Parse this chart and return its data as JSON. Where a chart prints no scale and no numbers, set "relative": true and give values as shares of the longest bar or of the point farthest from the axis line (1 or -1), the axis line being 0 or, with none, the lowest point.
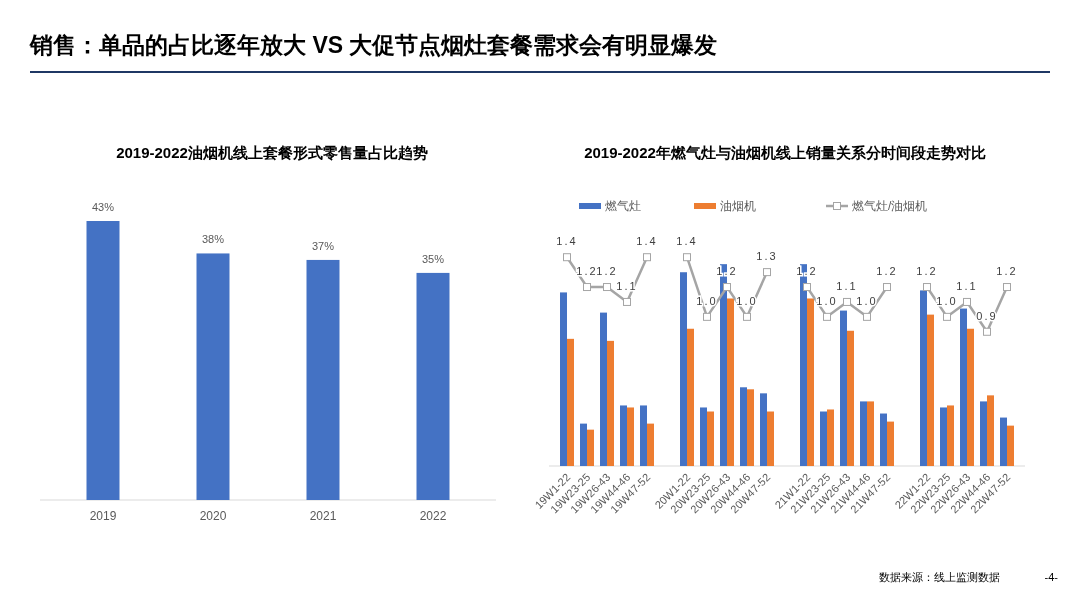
{
  "chart_data": [
    {
      "type": "bar",
      "title": "2019-2022油烟机线上套餐形式零售量占比趋势",
      "categories": [
        "2019",
        "2020",
        "2021",
        "2022"
      ],
      "values": [
        43,
        38,
        37,
        35
      ],
      "value_labels": [
        "43%",
        "38%",
        "37%",
        "35%"
      ],
      "color": "#4472c4",
      "annotations": [
        "销售：单品的占比逐年放大 VS 大促节点烟灶套餐需求会有明显爆发"
      ]
    },
    {
      "type": "bar",
      "title": "2019-2022年燃气灶与油烟机线上销量关系分时间段走势对比",
      "categories": [
        "19W1-22",
        "19W23-25",
        "19W26-43",
        "19W44-46",
        "19W47-52",
        null,
        "20W1-22",
        "20W23-25",
        "20W26-43",
        "20W44-46",
        "20W47-52",
        null,
        "21W1-22",
        "21W23-25",
        "21W26-43",
        "21W44-46",
        "21W47-52",
        null,
        "22W1-22",
        "22W23-25",
        "22W26-43",
        "22W44-46",
        "22W47-52"
      ],
      "relative": true,
      "legend": "top",
      "series": [
        {
          "name": "燃气灶",
          "color": "#4472c4",
          "values": [
            0.86,
            0.21,
            0.76,
            0.3,
            0.3,
            null,
            0.96,
            0.29,
            1,
            0.39,
            0.36,
            null,
            1,
            0.27,
            0.77,
            0.32,
            0.26,
            null,
            0.87,
            0.29,
            0.78,
            0.32,
            0.24
          ]
        },
        {
          "name": "油烟机",
          "color": "#ed7d31",
          "values": [
            0.63,
            0.18,
            0.62,
            0.29,
            0.21,
            null,
            0.68,
            0.27,
            0.83,
            0.38,
            0.27,
            null,
            0.83,
            0.28,
            0.67,
            0.32,
            0.22,
            null,
            0.75,
            0.3,
            0.68,
            0.35,
            0.2
          ]
        }
      ],
      "annotations": [
        "数据来源：线上监测数据",
        "-4-"
      ]
    },
    {
      "type": "line",
      "categories": [
        null,
        null,
        null,
        null,
        null,
        null,
        null,
        null,
        null,
        null,
        null,
        null,
        null,
        null,
        null,
        null,
        null,
        null,
        null,
        null,
        null,
        null,
        null
      ],
      "tick_labels": false,
      "legend": "top",
      "marker": "square",
      "series": [
        {
          "name": "燃气灶/油烟机",
          "color": "#a5a5a5",
          "values": [
            1.4,
            1.2,
            1.2,
            1.1,
            1.4,
            null,
            1.4,
            1.0,
            1.2,
            1.0,
            1.3,
            null,
            1.2,
            1.0,
            1.1,
            1.0,
            1.2,
            null,
            1.2,
            1.0,
            1.1,
            0.9,
            1.2
          ],
          "value_labels": [
            "1.4",
            "1.2",
            "1.2",
            "1.1",
            "1.4",
            null,
            "1.4",
            "1.0",
            "1.2",
            "1.0",
            "1.3",
            null,
            "1.2",
            "1.0",
            "1.1",
            "1.0",
            "1.2",
            null,
            "1.2",
            "1.0",
            "1.1",
            "0.9",
            "1.2"
          ]
        }
      ]
    }
  ]
}
